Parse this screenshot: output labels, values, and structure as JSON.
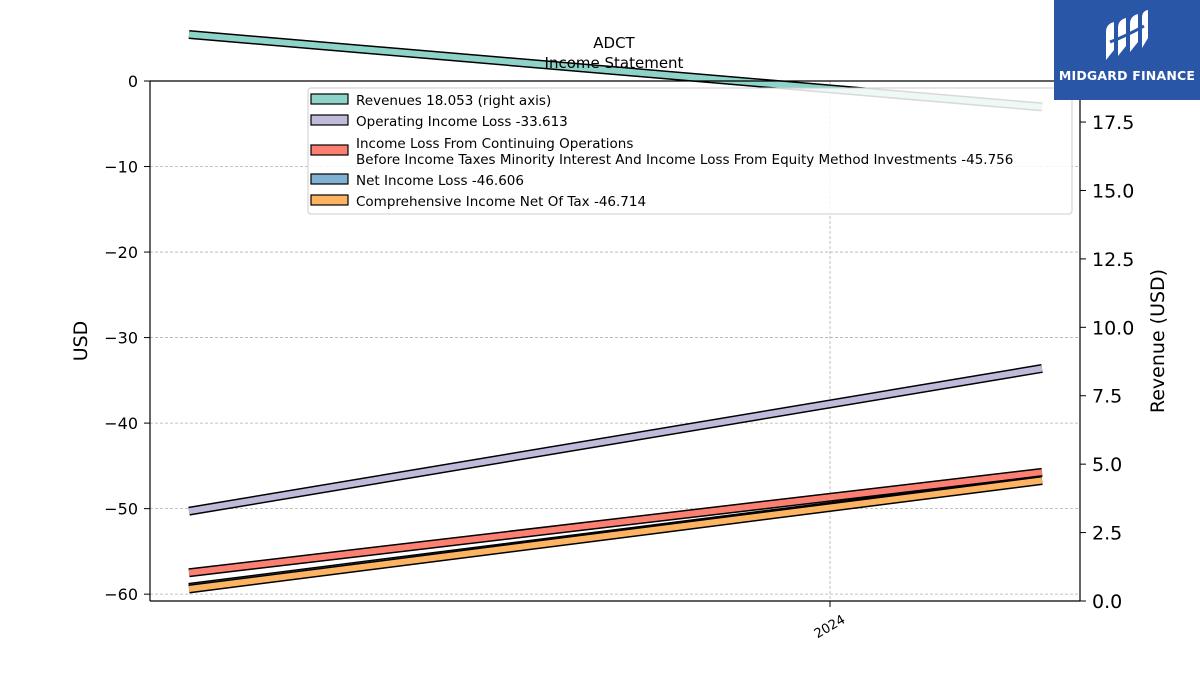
{
  "chart_data": {
    "type": "line",
    "title": "ADCT",
    "subtitle": "Income Statement",
    "ylabel": "USD",
    "ylabel_right": "Revenue (USD)",
    "x_tick_labels": [
      "2024"
    ],
    "ylim": [
      -60.8,
      0
    ],
    "yticks": [
      0,
      -10,
      -20,
      -30,
      -40,
      -50,
      -60
    ],
    "ylim_right": [
      0,
      19
    ],
    "yticks_right": [
      0.0,
      2.5,
      5.0,
      7.5,
      10.0,
      12.5,
      15.0,
      17.5
    ],
    "ytick_labels_right": [
      "0.0",
      "2.5",
      "5.0",
      "7.5",
      "10.0",
      "12.5",
      "15.0",
      "17.5"
    ],
    "grid": true,
    "legend_position": "upper-center",
    "series": [
      {
        "name": "Revenues  18.053 (right axis)",
        "axis": "right",
        "color": "#8dd3c7",
        "values": [
          20.7,
          18.053
        ]
      },
      {
        "name": "Operating Income Loss  -33.613",
        "axis": "left",
        "color": "#bebada",
        "values": [
          -50.3,
          -33.613
        ]
      },
      {
        "name": "Income Loss From Continuing Operations\nBefore Income Taxes Minority Interest And Income Loss From Equity Method Investments  -45.756",
        "axis": "left",
        "color": "#fb8072",
        "values": [
          -57.5,
          -45.756
        ]
      },
      {
        "name": "Net Income Loss  -46.606",
        "axis": "left",
        "color": "#80b1d3",
        "values": [
          -59.2,
          -46.606
        ]
      },
      {
        "name": "Comprehensive Income Net Of Tax  -46.714",
        "axis": "left",
        "color": "#fdb462",
        "values": [
          -59.4,
          -46.714
        ]
      }
    ]
  },
  "logo": {
    "text": "MIDGARD FINANCE"
  }
}
